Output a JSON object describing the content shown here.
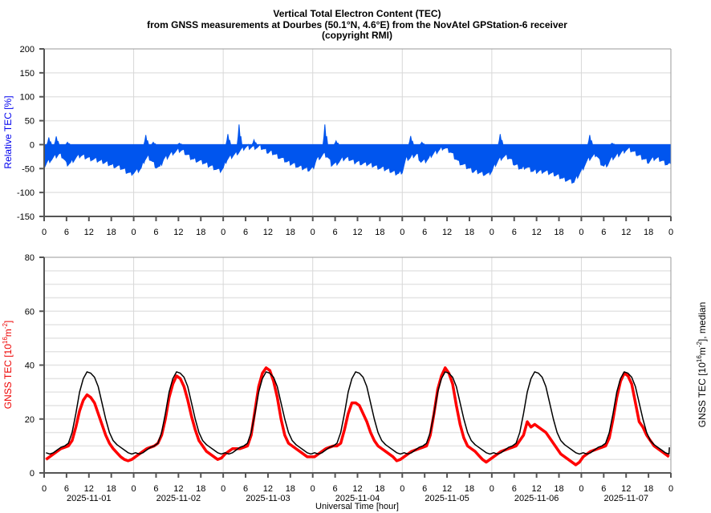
{
  "title": {
    "line1": "Vertical Total Electron Content (TEC)",
    "line2": "from GNSS measurements at Dourbes (50.1°N, 4.6°E) from the NovAtel GPStation-6 receiver",
    "line3": "(copyright RMI)"
  },
  "chart_data": [
    {
      "type": "area",
      "name": "relative-tec",
      "ylabel": "Relative TEC [%]",
      "ylim": [
        -150,
        200
      ],
      "yticks": [
        "200",
        "150",
        "100",
        "50",
        "0",
        "-50",
        "-100",
        "-150"
      ],
      "ytick_values": [
        200,
        150,
        100,
        50,
        0,
        -50,
        -100,
        -150
      ],
      "xlim_hours": [
        0,
        168
      ],
      "xtick_labels": [
        "0",
        "6",
        "12",
        "18"
      ],
      "color": "#0055ee",
      "grid": true,
      "lower_hourly": [
        [
          -45,
          -35,
          -30,
          -25,
          -20,
          -25,
          -40,
          -38,
          -30,
          -25,
          -22,
          -25,
          -28,
          -30,
          -32,
          -34,
          -36,
          -38,
          -42,
          -44,
          -46,
          -50,
          -55,
          -60
        ],
        [
          -58,
          -55,
          -50,
          -30,
          -25,
          -35,
          -45,
          -48,
          -30,
          -25,
          -18,
          -15,
          -12,
          -12,
          -18,
          -25,
          -30,
          -32,
          -35,
          -38,
          -42,
          -45,
          -50,
          -55
        ],
        [
          -50,
          -30,
          -25,
          -20,
          -15,
          -10,
          -5,
          -5,
          -5,
          -5,
          -5,
          -10,
          -15,
          -15,
          -20,
          -25,
          -30,
          -35,
          -38,
          -40,
          -45,
          -48,
          -50,
          -52
        ],
        [
          -50,
          -30,
          -25,
          -20,
          -25,
          -40,
          -40,
          -35,
          -30,
          -28,
          -30,
          -35,
          -35,
          -38,
          -40,
          -40,
          -42,
          -45,
          -48,
          -50,
          -52,
          -55,
          -58,
          -60
        ],
        [
          -55,
          -30,
          -28,
          -22,
          -20,
          -35,
          -35,
          -30,
          -20,
          -15,
          -10,
          -5,
          -10,
          -15,
          -25,
          -35,
          -40,
          -45,
          -50,
          -55,
          -55,
          -58,
          -60,
          -62
        ],
        [
          -55,
          -40,
          -30,
          -25,
          -25,
          -30,
          -40,
          -45,
          -50,
          -45,
          -50,
          -55,
          -55,
          -55,
          -55,
          -58,
          -60,
          -62,
          -65,
          -70,
          -72,
          -75,
          -78,
          -65
        ],
        [
          -55,
          -40,
          -30,
          -25,
          -20,
          -35,
          -45,
          -40,
          -30,
          -25,
          -20,
          -15,
          -10,
          -10,
          -15,
          -20,
          -25,
          -30,
          -35,
          -30,
          -28,
          -30,
          -35,
          -40
        ]
      ],
      "upper_spikes": [
        [
          1,
          15
        ],
        [
          3,
          17
        ],
        [
          6,
          5
        ],
        [
          27,
          20
        ],
        [
          29,
          5
        ],
        [
          36,
          3
        ],
        [
          49,
          22
        ],
        [
          52,
          42
        ],
        [
          56,
          10
        ],
        [
          75,
          42
        ],
        [
          78,
          8
        ],
        [
          98,
          18
        ],
        [
          101,
          5
        ],
        [
          122,
          22
        ],
        [
          146,
          20
        ],
        [
          152,
          3
        ]
      ]
    },
    {
      "type": "line",
      "name": "gnss-tec",
      "ylabel_parts": [
        "GNSS TEC [10",
        "16",
        "m",
        "-2",
        "]"
      ],
      "y2label_parts": [
        "GNSS TEC [10",
        "16",
        "m",
        "-2",
        "], median"
      ],
      "xlabel": "Universal Time [hour]",
      "ylim": [
        0,
        80
      ],
      "yticks": [
        "80",
        "60",
        "40",
        "20",
        "0"
      ],
      "ytick_values": [
        80,
        60,
        40,
        20,
        0
      ],
      "xlim_hours": [
        0,
        168
      ],
      "xtick_labels": [
        "0",
        "6",
        "12",
        "18"
      ],
      "dates": [
        "2025-11-01",
        "2025-11-02",
        "2025-11-03",
        "2025-11-04",
        "2025-11-05",
        "2025-11-06",
        "2025-11-07"
      ],
      "final_tick_label": "0",
      "grid": true,
      "series": [
        {
          "name": "GNSS TEC",
          "color": "#ff0000",
          "hourly": [
            [
              5,
              6,
              7,
              8,
              9,
              9.5,
              10,
              12,
              17,
              23,
              27,
              29,
              28,
              26,
              22,
              18,
              14,
              11,
              9,
              7.5,
              6,
              5,
              4.5,
              5
            ],
            [
              6,
              7,
              8,
              9,
              9.5,
              10,
              11,
              14,
              20,
              28,
              33,
              36,
              35,
              32,
              27,
              21,
              16,
              12,
              10,
              8,
              7,
              6,
              5,
              5.5
            ],
            [
              7,
              8,
              9,
              9,
              9,
              9.5,
              10,
              14,
              23,
              32,
              37,
              39,
              38,
              34,
              28,
              20,
              14,
              11,
              10,
              9,
              8,
              7,
              6,
              6
            ],
            [
              6,
              7,
              8,
              9,
              9.5,
              10,
              10,
              11,
              16,
              22,
              26,
              26,
              25,
              22,
              19,
              15,
              12,
              10,
              9,
              8,
              7,
              6,
              4.5,
              5
            ],
            [
              6,
              7,
              8,
              8.5,
              9,
              9.5,
              10,
              14,
              22,
              31,
              36,
              39,
              37,
              33,
              25,
              18,
              13,
              10,
              9,
              8,
              6.5,
              5,
              4,
              5
            ],
            [
              6,
              7,
              8,
              8.5,
              9,
              9.5,
              10,
              12,
              14,
              19,
              17,
              18,
              17,
              16,
              15,
              13,
              11,
              9,
              7,
              6,
              5,
              4,
              3,
              4
            ],
            [
              6,
              7,
              8,
              8.5,
              9,
              9.5,
              10,
              13,
              20,
              28,
              34,
              37,
              36,
              33,
              26,
              19,
              17,
              14,
              12,
              10,
              9,
              8,
              7,
              6
            ]
          ]
        },
        {
          "name": "median",
          "color": "#000000",
          "daily_profile_hourly": [
            7.5,
            7,
            7.5,
            8.5,
            9.5,
            10,
            11,
            15,
            22,
            30,
            35,
            37.5,
            37,
            35.5,
            32,
            26,
            20,
            15,
            12,
            10.5,
            9.5,
            8.5,
            7.5,
            7
          ],
          "end_value": 9.5
        }
      ]
    }
  ]
}
